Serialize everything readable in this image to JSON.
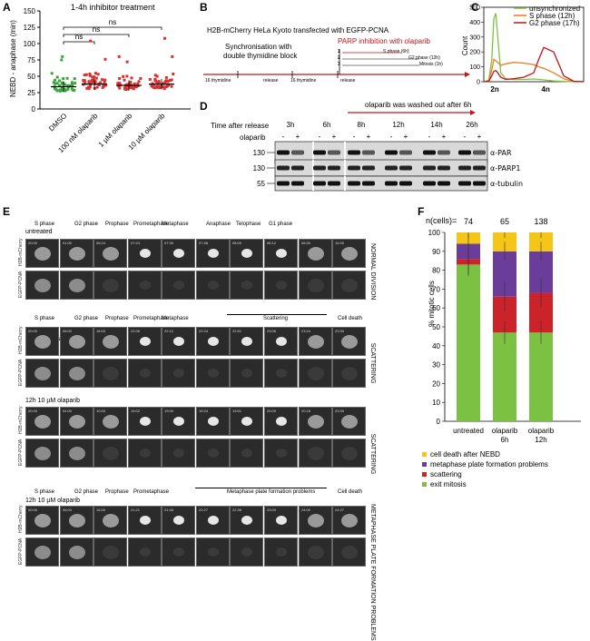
{
  "panels": {
    "A": "A",
    "B": "B",
    "C": "C",
    "D": "D",
    "E": "E",
    "F": "F"
  },
  "panelA": {
    "title": "1-4h inhibitor treatment",
    "ylabel": "NEBD - anaphase (min)",
    "yticks": [
      "0",
      "25",
      "50",
      "75",
      "100",
      "125",
      "150"
    ],
    "categories": [
      "DMSO",
      "100 nM olaparib",
      "1 µM olaparib",
      "10 µM olaparib"
    ],
    "sig": [
      "ns",
      "ns",
      "ns"
    ],
    "colors": {
      "dmso": "#3aa53a",
      "olaparib": "#d93030"
    }
  },
  "panelB": {
    "title": "H2B-mCherry HeLa Kyoto transfected with EGFP-PCNA",
    "step1": "Synchronisation with",
    "step2": "double thymidine block",
    "parp": "PARP inhibition with olaparib",
    "opts": [
      "S phase (6h)",
      "G2 phase (12h)",
      "Mitosis (1h)"
    ],
    "nums": [
      "1",
      "2",
      "3"
    ],
    "timeline": [
      "16 thymidine",
      "release",
      "16 thymidine",
      "release"
    ]
  },
  "chart_data": {
    "type": "line",
    "xlabel": "",
    "ylabel": "Count",
    "xticks": [
      "2n",
      "4n"
    ],
    "yticks": [
      "0",
      "100",
      "200",
      "300",
      "400",
      "500"
    ],
    "ylim": [
      0,
      500
    ],
    "series": [
      {
        "name": "unsynchronized",
        "color": "#7dc242",
        "x": [
          0,
          5,
          8,
          10,
          12,
          14,
          17,
          22,
          30,
          40,
          50,
          55,
          60,
          70,
          80,
          90,
          100
        ],
        "values": [
          0,
          10,
          150,
          420,
          460,
          300,
          60,
          20,
          15,
          15,
          18,
          15,
          12,
          5,
          2,
          0,
          0
        ]
      },
      {
        "name": "S phase (12h)",
        "color": "#f07a1e",
        "x": [
          0,
          5,
          8,
          10,
          12,
          14,
          17,
          22,
          30,
          40,
          50,
          55,
          60,
          70,
          80,
          90,
          100
        ],
        "values": [
          0,
          5,
          80,
          150,
          140,
          130,
          110,
          120,
          130,
          125,
          115,
          100,
          90,
          60,
          20,
          2,
          0
        ]
      },
      {
        "name": "G2 phase (17h)",
        "color": "#c0161b",
        "x": [
          0,
          5,
          8,
          10,
          12,
          14,
          17,
          22,
          30,
          40,
          50,
          55,
          60,
          70,
          80,
          90,
          100
        ],
        "values": [
          0,
          3,
          40,
          70,
          75,
          60,
          30,
          15,
          20,
          30,
          60,
          150,
          230,
          200,
          40,
          3,
          0
        ]
      }
    ]
  },
  "panelD": {
    "washout": "olaparib was washed out after 6h",
    "timeLabel": "Time after release",
    "olaparibLabel": "olaparib",
    "times": [
      "3h",
      "6h",
      "8h",
      "12h",
      "14h",
      "26h"
    ],
    "signs": [
      "-",
      "+",
      "-",
      "+",
      "-",
      "+",
      "-",
      "+",
      "-",
      "+",
      "-",
      "+"
    ],
    "mw": [
      "130",
      "130",
      "55"
    ],
    "blots": [
      "α-PAR",
      "α-PARP1",
      "α-tubulin"
    ]
  },
  "panelE": {
    "phases1": [
      "S phase",
      "G2 phase",
      "Prophase",
      "Prometaphase",
      "Metaphase",
      "Anaphase",
      "Telophase",
      "G1 phase"
    ],
    "phases2": [
      "S phase",
      "G2 phase",
      "Prophase",
      "Prometaphase",
      "Metaphase",
      "Scattering",
      "Cell death"
    ],
    "phases4": [
      "S phase",
      "G2 phase",
      "Prophase",
      "Prometaphase",
      "Metaphase plate formation problems",
      "Cell death"
    ],
    "cond1": "untreated",
    "cond2": "6h 10 µM olaparib",
    "cond3": "12h 10 µM olaparib",
    "cond4": "12h 10 µM olaparib",
    "channel1": "H2B-mCherry",
    "channel2": "EGFP-PCNA",
    "side1": "NORMAL DIVISION",
    "side2": "SCATTERING",
    "side3": "SCATTERING",
    "side4": "METAPHASE PLATE FORMATION PROBLEMS",
    "t1": [
      "00:00",
      "01:00",
      "06:24",
      "07:24",
      "07:30",
      "07:48",
      "08:00",
      "08:12",
      "08:30",
      "14:00"
    ],
    "t2": [
      "00:00",
      "06:00",
      "16:00",
      "22:06",
      "22:12",
      "22:24",
      "22:51",
      "23:06",
      "23:24",
      "23:30"
    ],
    "t3": [
      "00:00",
      "04:00",
      "10:00",
      "19:02",
      "19:09",
      "19:24",
      "19:51",
      "20:09",
      "20:18",
      "23:30"
    ],
    "t4": [
      "00:00",
      "06:00",
      "16:00",
      "21:21",
      "21:45",
      "22:27",
      "22:36",
      "23:00",
      "24:00",
      "24:27"
    ]
  },
  "panelF": {
    "ncells": "n(cells)=",
    "nvals": [
      "74",
      "65",
      "138"
    ],
    "ylabel": "% mitotic cells",
    "yticks": [
      "0",
      "10",
      "20",
      "30",
      "40",
      "50",
      "60",
      "70",
      "80",
      "90",
      "100"
    ],
    "categories": [
      "untreated",
      "olaparib 6h",
      "olaparib 12h"
    ],
    "stacks": [
      {
        "exit": 83,
        "scatter": 3,
        "meta": 8,
        "death": 6
      },
      {
        "exit": 47,
        "scatter": 19,
        "meta": 24,
        "death": 10
      },
      {
        "exit": 47,
        "scatter": 21,
        "meta": 22,
        "death": 10
      }
    ],
    "legend": [
      {
        "label": "cell death after NEBD",
        "color": "#f5c518"
      },
      {
        "label": "metaphase plate formation problems",
        "color": "#6a3d9a"
      },
      {
        "label": "scattering",
        "color": "#cc2229"
      },
      {
        "label": "exit mitosis",
        "color": "#7cc142"
      }
    ]
  }
}
